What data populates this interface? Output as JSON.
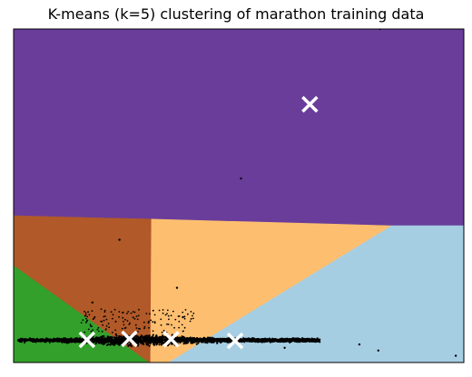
{
  "title": "K-means (k=5) clustering of marathon training data",
  "chart_data": {
    "type": "scatter",
    "title": "K-means (k=5) clustering of marathon training data",
    "xlabel": "",
    "ylabel": "",
    "axes_ticks": false,
    "xlim": [
      0,
      100
    ],
    "ylim": [
      0,
      100
    ],
    "regions": [
      {
        "name": "cluster-purple",
        "color": "#6a3d9a",
        "polygon": [
          [
            0,
            100
          ],
          [
            100,
            100
          ],
          [
            100,
            41
          ],
          [
            84,
            41
          ],
          [
            0,
            44
          ]
        ]
      },
      {
        "name": "cluster-orange",
        "color": "#fdbf6f",
        "polygon": [
          [
            30.5,
            43
          ],
          [
            84,
            41
          ],
          [
            34.5,
            0
          ],
          [
            30.3,
            0
          ]
        ]
      },
      {
        "name": "cluster-light-blue",
        "color": "#a6cee3",
        "polygon": [
          [
            84,
            41
          ],
          [
            100,
            41
          ],
          [
            100,
            0
          ],
          [
            34.5,
            0
          ]
        ]
      },
      {
        "name": "cluster-brown",
        "color": "#b15928",
        "polygon": [
          [
            0,
            44
          ],
          [
            30.5,
            43
          ],
          [
            30.3,
            0
          ],
          [
            30,
            0
          ],
          [
            0,
            29
          ]
        ]
      },
      {
        "name": "cluster-green",
        "color": "#33a02c",
        "polygon": [
          [
            0,
            29
          ],
          [
            30,
            0
          ],
          [
            0,
            0
          ]
        ]
      }
    ],
    "centroids": [
      {
        "x": 65.8,
        "y": 77.4
      },
      {
        "x": 16.3,
        "y": 6.8
      },
      {
        "x": 25.7,
        "y": 7.1
      },
      {
        "x": 35.0,
        "y": 7.0
      },
      {
        "x": 49.2,
        "y": 6.5
      }
    ],
    "outliers": [
      {
        "x": 50.5,
        "y": 55.2
      },
      {
        "x": 23.5,
        "y": 36.8
      },
      {
        "x": 36.3,
        "y": 22.4
      },
      {
        "x": 60.2,
        "y": 4.4
      },
      {
        "x": 76.8,
        "y": 5.4
      },
      {
        "x": 81.0,
        "y": 3.6
      },
      {
        "x": 98.2,
        "y": 2.0
      },
      {
        "x": 81.4,
        "y": 100
      },
      {
        "x": 17.5,
        "y": 18.0
      },
      {
        "x": 37.6,
        "y": 13.6
      }
    ],
    "bulk": {
      "x_min": 1,
      "x_max": 68,
      "y_center": 6.7,
      "count": 2600
    },
    "colors": {
      "points": "#000000",
      "centroid_marker": "#ffffff",
      "frame": "#000000"
    }
  }
}
